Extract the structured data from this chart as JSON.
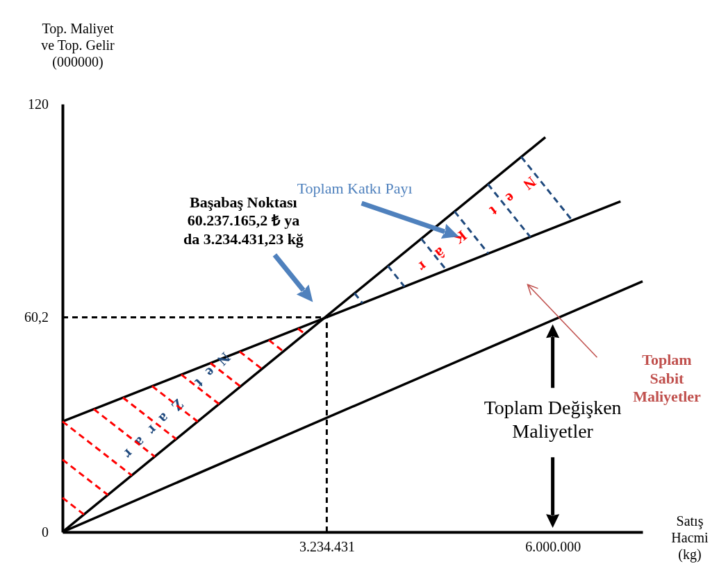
{
  "chart_data": {
    "type": "line",
    "xlabel": "Satış Hacmi (kg)",
    "ylabel": "Top. Maliyet ve Top. Gelir (000000)",
    "xlim": [
      0,
      7100000
    ],
    "ylim": [
      0,
      120
    ],
    "xticks": [
      {
        "value": 0,
        "label": null
      },
      {
        "value": 3234431,
        "label": "3.234.431"
      },
      {
        "value": 6000000,
        "label": "6.000.000"
      }
    ],
    "yticks": [
      0,
      {
        "value": 60.2,
        "label": "60,2"
      },
      120
    ],
    "series": [
      {
        "color": "#000000",
        "x": [
          0,
          5910000
        ],
        "values": [
          0,
          110.7
        ]
      },
      {
        "color": "#000000",
        "x": [
          0,
          6830000
        ],
        "values": [
          31.0,
          92.7
        ]
      },
      {
        "color": "#000000",
        "x": [
          0,
          7100000
        ],
        "values": [
          0,
          70.3
        ]
      }
    ],
    "ref_lines": [
      {
        "axis": "x",
        "value": 3234431,
        "color": "#000000",
        "line_style": "dashed"
      },
      {
        "axis": "y",
        "value": 60.2,
        "color": "#000000",
        "line_style": "dashed"
      }
    ],
    "annotations": [
      "Başabaş Noktası\n60.237.165,2  ₺ ya\nda 3.234.431,23 kğ",
      "Toplam Katkı Payı",
      {
        "text": "Net Kâr",
        "x": 5000000,
        "y": 93.7
      },
      {
        "text": "Net Zarar",
        "x": 1360000,
        "y": 43.3
      },
      "Toplam Sabit Maliyetler",
      "Toplam Değişken Maliyetler"
    ],
    "grid": false,
    "marker": "none",
    "line_style": "solid"
  }
}
